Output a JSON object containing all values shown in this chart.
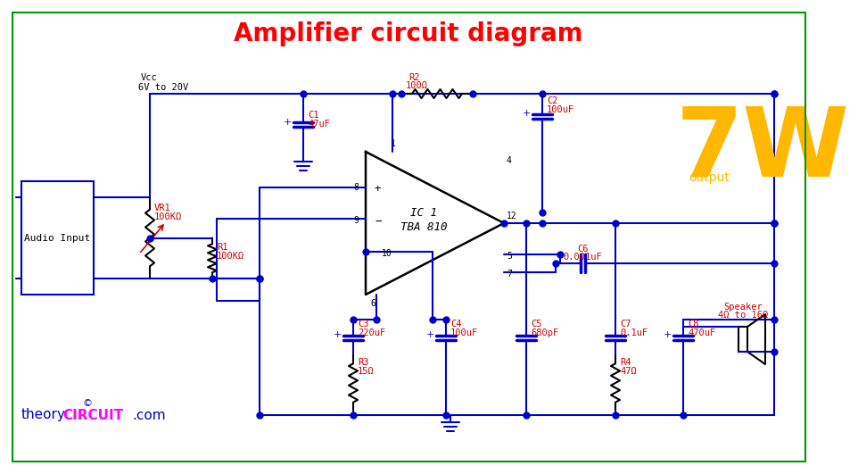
{
  "title": "Amplifier circuit diagram",
  "title_color": "#FF0000",
  "title_fontsize": 20,
  "bg_color": "#FFFFFF",
  "border_color": "#009900",
  "wire_color": "#0000CC",
  "component_color": "#000000",
  "label_color": "#CC0000",
  "output_color": "#FFB800",
  "watermark_theory_color": "#0000BB",
  "watermark_circuit_color": "#FF00FF",
  "vcc_label": "Vcc",
  "vcc_range": "6V to 20V",
  "r2_label": "R2",
  "r2_val": "100Ω",
  "c1_label": "C1",
  "c1_val": "47uF",
  "c2_label": "C2",
  "c2_val": "100uF",
  "c3_label": "C3",
  "c3_val": "220uF",
  "c4_label": "C4",
  "c4_val": "100uF",
  "c5_label": "C5",
  "c5_val": "680pF",
  "c6_label": "C6",
  "c6_val": "0.001uF",
  "c7_label": "C7",
  "c7_val": "0.1uF",
  "c8_label": "C8",
  "c8_val": "470uF",
  "r1_label": "R1",
  "r1_val": "100KΩ",
  "r3_label": "R3",
  "r3_val": "15Ω",
  "r4_label": "R4",
  "r4_val": "47Ω",
  "vr1_label": "VR1",
  "vr1_val": "100KΩ",
  "ic_line1": "IC 1",
  "ic_line2": "TBA 810",
  "spk_label": "Speaker",
  "spk_val": "4Ω to 16Ω",
  "output_text": "7W",
  "output_sub": "output"
}
